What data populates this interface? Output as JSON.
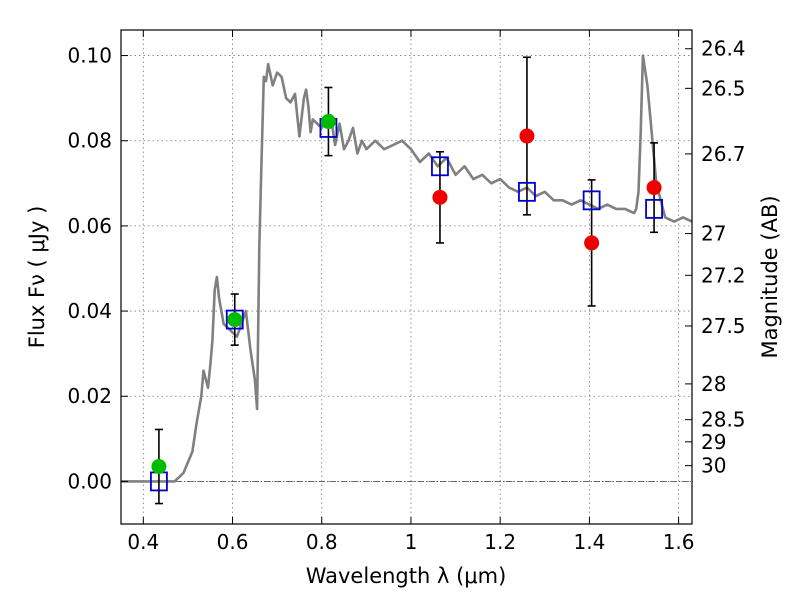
{
  "chart_data": {
    "type": "scatter",
    "xlabel": "Wavelength  λ (μm)",
    "ylabel": "Flux  Fν  ( μJy )",
    "y2label": "Magnitude (AB)",
    "xlim": [
      0.35,
      1.63
    ],
    "ylim": [
      -0.01,
      0.106
    ],
    "grid": true,
    "x_ticks": [
      0.4,
      0.6,
      0.8,
      1.0,
      1.2,
      1.4,
      1.6
    ],
    "x_tick_labels": [
      "0.4",
      "0.6",
      "0.8",
      "1",
      "1.2",
      "1.4",
      "1.6"
    ],
    "y_ticks": [
      0.0,
      0.02,
      0.04,
      0.06,
      0.08,
      0.1
    ],
    "y_tick_labels": [
      "0.00",
      "0.02",
      "0.04",
      "0.06",
      "0.08",
      "0.10"
    ],
    "mag_ticks": [
      {
        "label": "26.4",
        "flux": 0.1016
      },
      {
        "label": "26.5",
        "flux": 0.0923
      },
      {
        "label": "26.7",
        "flux": 0.0769
      },
      {
        "label": "27",
        "flux": 0.0582
      },
      {
        "label": "27.2",
        "flux": 0.0484
      },
      {
        "label": "27.5",
        "flux": 0.0365
      },
      {
        "label": "28",
        "flux": 0.0229
      },
      {
        "label": "28.5",
        "flux": 0.0145
      },
      {
        "label": "29",
        "flux": 0.0093
      },
      {
        "label": "30",
        "flux": 0.0037
      }
    ],
    "colors": {
      "model_line": "#808080",
      "measured_green": "#00bb00",
      "measured_red": "#ee0000",
      "model_box": "#0000cc",
      "errorbar": "#000000",
      "zero_line": "#555555"
    },
    "series": [
      {
        "kind": "model_spectrum",
        "x": [
          0.35,
          0.47,
          0.49,
          0.51,
          0.52,
          0.53,
          0.535,
          0.545,
          0.55,
          0.555,
          0.56,
          0.565,
          0.57,
          0.575,
          0.58,
          0.59,
          0.6,
          0.61,
          0.62,
          0.63,
          0.64,
          0.65,
          0.655,
          0.66,
          0.665,
          0.67,
          0.675,
          0.68,
          0.69,
          0.7,
          0.71,
          0.72,
          0.73,
          0.74,
          0.75,
          0.76,
          0.765,
          0.77,
          0.775,
          0.78,
          0.8,
          0.82,
          0.83,
          0.84,
          0.85,
          0.86,
          0.87,
          0.88,
          0.89,
          0.9,
          0.92,
          0.94,
          0.96,
          0.98,
          1.0,
          1.02,
          1.04,
          1.06,
          1.08,
          1.1,
          1.12,
          1.14,
          1.16,
          1.18,
          1.2,
          1.22,
          1.24,
          1.26,
          1.28,
          1.3,
          1.32,
          1.34,
          1.36,
          1.38,
          1.4,
          1.42,
          1.44,
          1.46,
          1.48,
          1.5,
          1.505,
          1.51,
          1.515,
          1.52,
          1.53,
          1.55,
          1.57,
          1.59,
          1.61,
          1.63
        ],
        "y": [
          0.0,
          0.0,
          0.002,
          0.007,
          0.014,
          0.02,
          0.026,
          0.022,
          0.027,
          0.033,
          0.045,
          0.048,
          0.043,
          0.04,
          0.037,
          0.036,
          0.035,
          0.034,
          0.037,
          0.04,
          0.031,
          0.024,
          0.017,
          0.055,
          0.075,
          0.095,
          0.094,
          0.098,
          0.093,
          0.096,
          0.095,
          0.09,
          0.089,
          0.091,
          0.081,
          0.09,
          0.092,
          0.088,
          0.082,
          0.085,
          0.083,
          0.086,
          0.079,
          0.084,
          0.078,
          0.08,
          0.083,
          0.077,
          0.08,
          0.078,
          0.08,
          0.078,
          0.079,
          0.08,
          0.078,
          0.075,
          0.077,
          0.074,
          0.076,
          0.072,
          0.074,
          0.071,
          0.072,
          0.07,
          0.071,
          0.069,
          0.068,
          0.069,
          0.067,
          0.068,
          0.066,
          0.066,
          0.065,
          0.066,
          0.065,
          0.064,
          0.065,
          0.064,
          0.064,
          0.063,
          0.064,
          0.068,
          0.082,
          0.1,
          0.093,
          0.07,
          0.062,
          0.061,
          0.062,
          0.061
        ]
      },
      {
        "kind": "model_photometry",
        "x": [
          0.435,
          0.605,
          0.815,
          1.065,
          1.26,
          1.405,
          1.545
        ],
        "y": [
          0.0,
          0.038,
          0.083,
          0.074,
          0.068,
          0.066,
          0.064
        ]
      },
      {
        "kind": "observed_green",
        "x": [
          0.435,
          0.605,
          0.815
        ],
        "y": [
          0.0035,
          0.038,
          0.0845
        ],
        "err": [
          0.0087,
          0.006,
          0.008
        ]
      },
      {
        "kind": "observed_red",
        "x": [
          1.065,
          1.26,
          1.405,
          1.545
        ],
        "y": [
          0.0667,
          0.0811,
          0.056,
          0.069
        ],
        "err": [
          0.0107,
          0.0185,
          0.0148,
          0.0105
        ]
      }
    ]
  }
}
